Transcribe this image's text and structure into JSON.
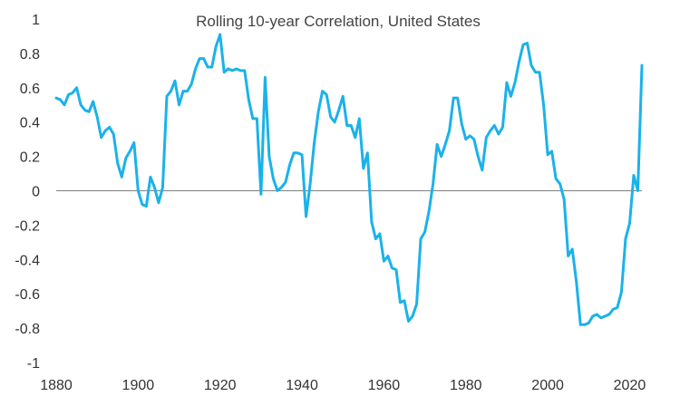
{
  "chart_data": {
    "type": "line",
    "title": "Rolling 10-year Correlation, United States",
    "xlabel": "",
    "ylabel": "",
    "xlim": [
      1880,
      2023
    ],
    "ylim": [
      -1,
      1
    ],
    "x_ticks": [
      "1880",
      "1900",
      "1920",
      "1940",
      "1960",
      "1980",
      "2000",
      "2020"
    ],
    "y_ticks": [
      "1",
      "0.8",
      "0.6",
      "0.4",
      "0.2",
      "0",
      "-0.2",
      "-0.4",
      "-0.6",
      "-0.8",
      "-1"
    ],
    "grid": false,
    "zero_line": true,
    "line_color": "#1ab2ea",
    "zero_line_color": "#7f7f7f",
    "series": [
      {
        "x": [
          1880,
          1881,
          1882,
          1883,
          1884,
          1885,
          1886,
          1887,
          1888,
          1889,
          1890,
          1891,
          1892,
          1893,
          1894,
          1895,
          1896,
          1897,
          1898,
          1899,
          1900,
          1901,
          1902,
          1903,
          1904,
          1905,
          1906,
          1907,
          1908,
          1909,
          1910,
          1911,
          1912,
          1913,
          1914,
          1915,
          1916,
          1917,
          1918,
          1919,
          1920,
          1921,
          1922,
          1923,
          1924,
          1925,
          1926,
          1927,
          1928,
          1929,
          1930,
          1931,
          1932,
          1933,
          1934,
          1935,
          1936,
          1937,
          1938,
          1939,
          1940,
          1941,
          1942,
          1943,
          1944,
          1945,
          1946,
          1947,
          1948,
          1949,
          1950,
          1951,
          1952,
          1953,
          1954,
          1955,
          1956,
          1957,
          1958,
          1959,
          1960,
          1961,
          1962,
          1963,
          1964,
          1965,
          1966,
          1967,
          1968,
          1969,
          1970,
          1971,
          1972,
          1973,
          1974,
          1975,
          1976,
          1977,
          1978,
          1979,
          1980,
          1981,
          1982,
          1983,
          1984,
          1985,
          1986,
          1987,
          1988,
          1989,
          1990,
          1991,
          1992,
          1993,
          1994,
          1995,
          1996,
          1997,
          1998,
          1999,
          2000,
          2001,
          2002,
          2003,
          2004,
          2005,
          2006,
          2007,
          2008,
          2009,
          2010,
          2011,
          2012,
          2013,
          2014,
          2015,
          2016,
          2017,
          2018,
          2019,
          2020,
          2021,
          2022,
          2023
        ],
        "values": [
          0.54,
          0.53,
          0.5,
          0.56,
          0.57,
          0.6,
          0.5,
          0.47,
          0.46,
          0.52,
          0.43,
          0.31,
          0.35,
          0.37,
          0.33,
          0.16,
          0.08,
          0.19,
          0.23,
          0.28,
          0.0,
          -0.08,
          -0.09,
          0.08,
          0.02,
          -0.07,
          0.02,
          0.55,
          0.58,
          0.64,
          0.5,
          0.58,
          0.58,
          0.62,
          0.71,
          0.77,
          0.77,
          0.72,
          0.72,
          0.84,
          0.91,
          0.69,
          0.71,
          0.7,
          0.71,
          0.7,
          0.7,
          0.53,
          0.42,
          0.42,
          -0.02,
          0.66,
          0.2,
          0.07,
          0.0,
          0.02,
          0.05,
          0.15,
          0.22,
          0.22,
          0.21,
          -0.15,
          0.04,
          0.28,
          0.46,
          0.58,
          0.56,
          0.43,
          0.4,
          0.47,
          0.55,
          0.38,
          0.38,
          0.31,
          0.42,
          0.13,
          0.22,
          -0.18,
          -0.28,
          -0.25,
          -0.41,
          -0.38,
          -0.45,
          -0.46,
          -0.65,
          -0.64,
          -0.76,
          -0.73,
          -0.66,
          -0.28,
          -0.24,
          -0.12,
          0.04,
          0.27,
          0.2,
          0.27,
          0.35,
          0.54,
          0.54,
          0.39,
          0.3,
          0.32,
          0.3,
          0.2,
          0.12,
          0.31,
          0.35,
          0.38,
          0.33,
          0.37,
          0.63,
          0.55,
          0.63,
          0.75,
          0.85,
          0.86,
          0.73,
          0.69,
          0.69,
          0.5,
          0.21,
          0.23,
          0.07,
          0.04,
          -0.05,
          -0.38,
          -0.34,
          -0.53,
          -0.78,
          -0.78,
          -0.77,
          -0.73,
          -0.72,
          -0.74,
          -0.73,
          -0.72,
          -0.69,
          -0.68,
          -0.59,
          -0.28,
          -0.19,
          0.09,
          0.0,
          0.73
        ]
      }
    ]
  }
}
